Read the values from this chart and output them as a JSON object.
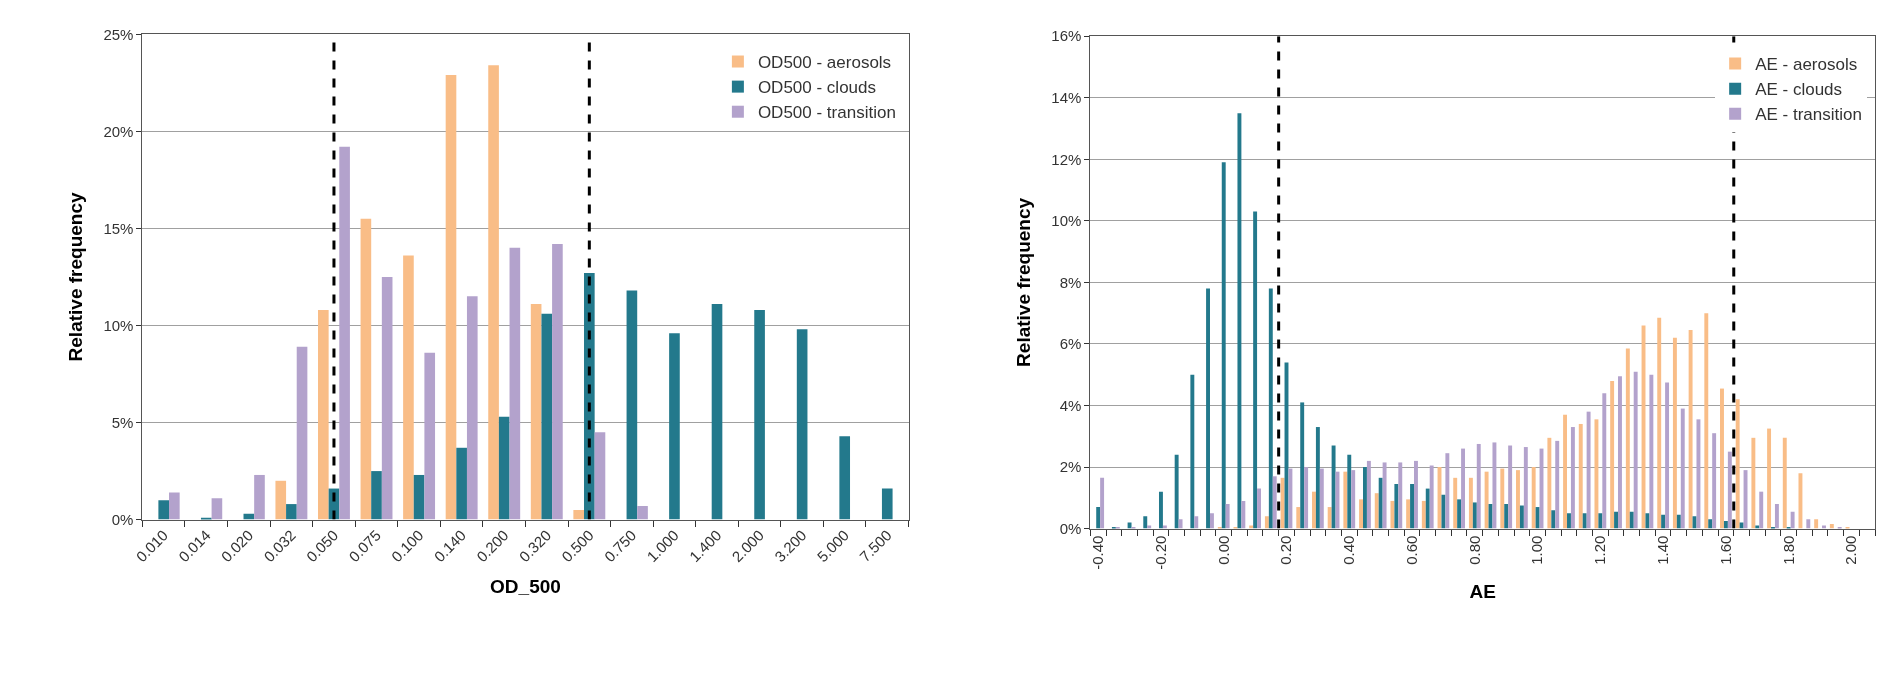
{
  "chart_data": [
    {
      "type": "bar",
      "xlabel": "OD_500",
      "ylabel": "Relative frequency",
      "categories": [
        "0.010",
        "0.014",
        "0.020",
        "0.032",
        "0.050",
        "0.075",
        "0.100",
        "0.140",
        "0.200",
        "0.320",
        "0.500",
        "0.750",
        "1.000",
        "1.400",
        "2.000",
        "3.200",
        "5.000",
        "7.500"
      ],
      "series": [
        {
          "name": "OD500 - aerosols",
          "color": "#f9bd87",
          "values": [
            0,
            0,
            0,
            2.0,
            10.8,
            15.5,
            13.6,
            22.9,
            23.4,
            11.1,
            0.5,
            0,
            0,
            0,
            0,
            0,
            0,
            0
          ]
        },
        {
          "name": "OD500 - clouds",
          "color": "#23798c",
          "values": [
            1.0,
            0.1,
            0.3,
            0.8,
            1.6,
            2.5,
            2.3,
            3.7,
            5.3,
            10.6,
            12.7,
            11.8,
            9.6,
            11.1,
            10.8,
            9.8,
            4.3,
            1.6
          ]
        },
        {
          "name": "OD500 - transition",
          "color": "#b3a2cc",
          "values": [
            1.4,
            1.1,
            2.3,
            8.9,
            19.2,
            12.5,
            8.6,
            11.5,
            14.0,
            14.2,
            4.5,
            0.7,
            0,
            0,
            0,
            0,
            0,
            0
          ]
        }
      ],
      "ylim": [
        0,
        25
      ],
      "yticks": [
        {
          "value": 0,
          "label": "0%"
        },
        {
          "value": 5,
          "label": "5%"
        },
        {
          "value": 10,
          "label": "10%"
        },
        {
          "value": 15,
          "label": "15%"
        },
        {
          "value": 20,
          "label": "20%"
        },
        {
          "value": 25,
          "label": "25%"
        }
      ],
      "ref_lines": [
        {
          "axis": "x",
          "value": "0.050",
          "color": "#000000",
          "line_style": "dashed"
        },
        {
          "axis": "x",
          "value": "0.500",
          "color": "#000000",
          "line_style": "dashed"
        }
      ],
      "grid": "y",
      "legend": "top right"
    },
    {
      "type": "bar",
      "xlabel": "AE",
      "ylabel": "Relative frequency",
      "x": [
        -0.4,
        -0.35,
        -0.3,
        -0.25,
        -0.2,
        -0.15,
        -0.1,
        -0.05,
        0,
        0.05,
        0.1,
        0.15,
        0.2,
        0.25,
        0.3,
        0.35,
        0.4,
        0.45,
        0.5,
        0.55,
        0.6,
        0.65,
        0.7,
        0.75,
        0.8,
        0.85,
        0.9,
        0.95,
        1.0,
        1.05,
        1.1,
        1.15,
        1.2,
        1.25,
        1.3,
        1.35,
        1.4,
        1.45,
        1.5,
        1.55,
        1.6,
        1.65,
        1.7,
        1.75,
        1.8,
        1.85,
        1.9,
        1.95,
        2.0,
        2.05
      ],
      "series": [
        {
          "name": "AE - aerosols",
          "color": "#f9bd87",
          "values": [
            0,
            0,
            0,
            0,
            0,
            0,
            0,
            0,
            0.05,
            0.05,
            0.1,
            0.4,
            1.65,
            0.7,
            1.2,
            0.7,
            1.85,
            0.95,
            1.15,
            0.9,
            0.95,
            0.9,
            2.0,
            1.65,
            1.65,
            1.85,
            1.95,
            1.9,
            2.0,
            2.95,
            3.7,
            3.4,
            3.55,
            4.8,
            5.85,
            6.6,
            6.85,
            6.2,
            6.45,
            7.0,
            4.55,
            4.2,
            2.95,
            3.25,
            2.95,
            1.8,
            0.3,
            0.15,
            0.05,
            0
          ]
        },
        {
          "name": "AE - clouds",
          "color": "#23798c",
          "values": [
            0.7,
            0.05,
            0.2,
            0.4,
            1.2,
            2.4,
            5.0,
            7.8,
            11.9,
            13.5,
            10.3,
            7.8,
            5.4,
            4.1,
            3.3,
            2.7,
            2.4,
            2.0,
            1.65,
            1.45,
            1.45,
            1.3,
            1.1,
            0.95,
            0.85,
            0.8,
            0.8,
            0.75,
            0.7,
            0.6,
            0.5,
            0.5,
            0.5,
            0.55,
            0.55,
            0.5,
            0.45,
            0.45,
            0.4,
            0.3,
            0.25,
            0.2,
            0.1,
            0.05,
            0.05,
            0,
            0,
            0,
            0,
            0
          ]
        },
        {
          "name": "AE - transition",
          "color": "#b3a2cc",
          "values": [
            1.65,
            0.05,
            0.05,
            0.1,
            0.1,
            0.3,
            0.4,
            0.5,
            0.8,
            0.9,
            1.3,
            1.7,
            1.95,
            2.0,
            1.95,
            1.85,
            1.9,
            2.2,
            2.15,
            2.15,
            2.2,
            2.05,
            2.45,
            2.6,
            2.75,
            2.8,
            2.7,
            2.65,
            2.6,
            2.85,
            3.3,
            3.8,
            4.4,
            4.95,
            5.1,
            5.0,
            4.75,
            3.9,
            3.55,
            3.1,
            2.5,
            1.9,
            1.2,
            0.8,
            0.55,
            0.3,
            0.1,
            0.05,
            0,
            0
          ]
        }
      ],
      "xlim": [
        -0.425,
        2.075
      ],
      "xticks": [
        {
          "value": -0.4,
          "label": "-0.40"
        },
        {
          "value": -0.2,
          "label": "-0.20"
        },
        {
          "value": 0,
          "label": "0.00"
        },
        {
          "value": 0.2,
          "label": "0.20"
        },
        {
          "value": 0.4,
          "label": "0.40"
        },
        {
          "value": 0.6,
          "label": "0.60"
        },
        {
          "value": 0.8,
          "label": "0.80"
        },
        {
          "value": 1.0,
          "label": "1.00"
        },
        {
          "value": 1.2,
          "label": "1.20"
        },
        {
          "value": 1.4,
          "label": "1.40"
        },
        {
          "value": 1.6,
          "label": "1.60"
        },
        {
          "value": 1.8,
          "label": "1.80"
        },
        {
          "value": 2.0,
          "label": "2.00"
        }
      ],
      "ylim": [
        0,
        16
      ],
      "yticks": [
        {
          "value": 0,
          "label": "0%"
        },
        {
          "value": 2,
          "label": "2%"
        },
        {
          "value": 4,
          "label": "4%"
        },
        {
          "value": 6,
          "label": "6%"
        },
        {
          "value": 8,
          "label": "8%"
        },
        {
          "value": 10,
          "label": "10%"
        },
        {
          "value": 12,
          "label": "12%"
        },
        {
          "value": 14,
          "label": "14%"
        },
        {
          "value": 16,
          "label": "16%"
        }
      ],
      "ref_lines": [
        {
          "axis": "x",
          "value": 0.175,
          "color": "#000000",
          "line_style": "dashed"
        },
        {
          "axis": "x",
          "value": 1.625,
          "color": "#000000",
          "line_style": "dashed"
        }
      ],
      "grid": "y",
      "legend": "top right"
    }
  ]
}
